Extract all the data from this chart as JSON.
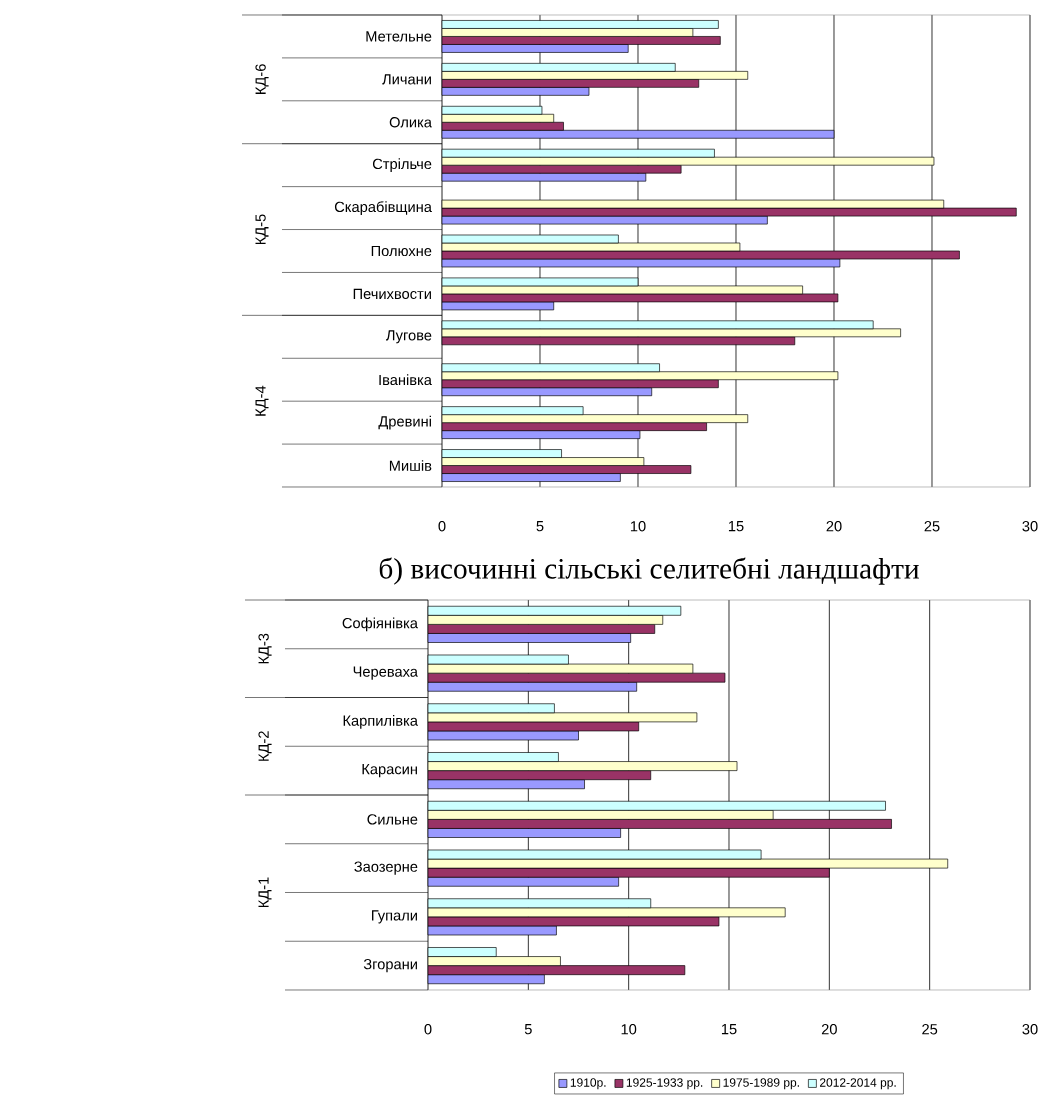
{
  "chart_data": [
    {
      "type": "bar",
      "orientation": "horizontal",
      "categories": [
        "Метельне",
        "Личани",
        "Олика",
        "Стрільче",
        "Скарабівщина",
        "Полюхне",
        "Печихвости",
        "Лугове",
        "Іванівка",
        "Древині",
        "Мишів"
      ],
      "series": [
        {
          "color": "#9999ff",
          "values": [
            9.5,
            7.5,
            20.0,
            10.4,
            16.6,
            20.3,
            5.7,
            null,
            10.7,
            10.1,
            9.1
          ]
        },
        {
          "color": "#993366",
          "values": [
            14.2,
            13.1,
            6.2,
            12.2,
            29.3,
            26.4,
            20.2,
            18.0,
            14.1,
            13.5,
            12.7
          ]
        },
        {
          "color": "#ffffcc",
          "values": [
            12.8,
            15.6,
            5.7,
            25.1,
            25.6,
            15.2,
            18.4,
            23.4,
            20.2,
            15.6,
            10.3
          ]
        },
        {
          "color": "#ccffff",
          "values": [
            14.1,
            11.9,
            5.1,
            13.9,
            null,
            9.0,
            10.0,
            22.0,
            11.1,
            7.2,
            6.1
          ]
        }
      ],
      "xlim": [
        0,
        30
      ],
      "xticks": [
        0,
        5,
        10,
        15,
        20,
        25,
        30
      ],
      "grid": "x",
      "annotations": [
        "КД-6",
        "КД-5",
        "КД-4"
      ]
    },
    {
      "type": "bar",
      "orientation": "horizontal",
      "title": "б) височинні сільські селитебні ландшафти",
      "categories": [
        "Софіянівка",
        "Череваха",
        "Карпилівка",
        "Карасин",
        "Сильне",
        "Заозерне",
        "Гупали",
        "Згорани"
      ],
      "series": [
        {
          "name": "1910р.",
          "color": "#9999ff",
          "values": [
            10.1,
            10.4,
            7.5,
            7.8,
            9.6,
            9.5,
            6.4,
            5.8
          ]
        },
        {
          "name": "1925-1933 рр.",
          "color": "#993366",
          "values": [
            11.3,
            14.8,
            10.5,
            11.1,
            23.1,
            20.0,
            14.5,
            12.8
          ]
        },
        {
          "name": "1975-1989 рр.",
          "color": "#ffffcc",
          "values": [
            11.7,
            13.2,
            13.4,
            15.4,
            17.2,
            25.9,
            17.8,
            6.6
          ]
        },
        {
          "name": "2012-2014 рр.",
          "color": "#ccffff",
          "values": [
            12.6,
            7.0,
            6.3,
            6.5,
            22.8,
            16.6,
            11.1,
            3.4
          ]
        }
      ],
      "xlim": [
        0,
        30
      ],
      "xticks": [
        0,
        5,
        10,
        15,
        20,
        25,
        30
      ],
      "grid": "x",
      "legend": "bottom",
      "annotations": [
        "КД-3",
        "КД-2",
        "КД-1"
      ]
    }
  ]
}
